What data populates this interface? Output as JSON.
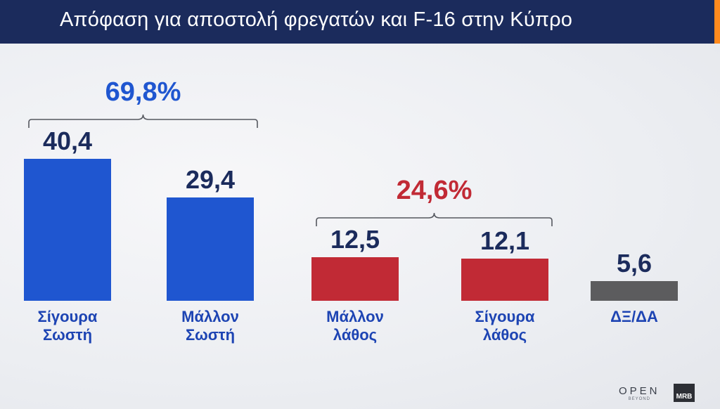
{
  "title": "Απόφαση για αποστολή φρεγατών και F-16 στην Κύπρο",
  "chart_data": {
    "type": "bar",
    "title": "Απόφαση για αποστολή φρεγατών και F-16 στην Κύπρο",
    "categories": [
      "Σίγουρα Σωστή",
      "Μάλλον Σωστή",
      "Μάλλον λάθος",
      "Σίγουρα λάθος",
      "ΔΞ/ΔΑ"
    ],
    "category_lines": [
      [
        "Σίγουρα",
        "Σωστή"
      ],
      [
        "Μάλλον",
        "Σωστή"
      ],
      [
        "Μάλλον",
        "λάθος"
      ],
      [
        "Σίγουρα",
        "λάθος"
      ],
      [
        "ΔΞ/ΔΑ"
      ]
    ],
    "values": [
      40.4,
      29.4,
      12.5,
      12.1,
      5.6
    ],
    "value_labels": [
      "40,4",
      "29,4",
      "12,5",
      "12,1",
      "5,6"
    ],
    "bar_colors": [
      "#1f56d0",
      "#1f56d0",
      "#c12a35",
      "#c12a35",
      "#5c5c5e"
    ],
    "groups": [
      {
        "label": "69,8%",
        "value": 69.8,
        "members": [
          0,
          1
        ],
        "color": "#1f56d0"
      },
      {
        "label": "24,6%",
        "value": 24.6,
        "members": [
          2,
          3
        ],
        "color": "#c12a35"
      }
    ],
    "grid": false,
    "legend": "none"
  },
  "colors": {
    "value_text": "#1b2b5c",
    "category_text": "#1d44b3",
    "header_bg": "#1b2b5c",
    "accent": "#ff8a1e"
  },
  "logos": {
    "channel": "OPEN",
    "channel_sub": "BEYOND",
    "pollster": "MRB"
  }
}
